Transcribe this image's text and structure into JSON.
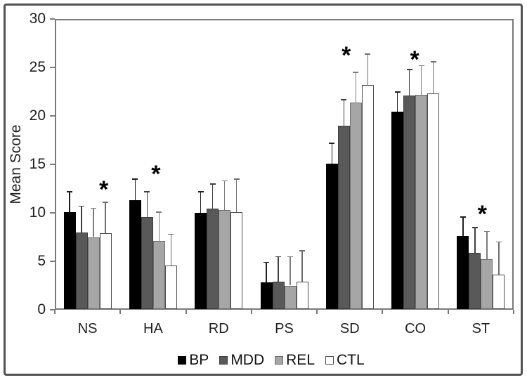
{
  "figure": {
    "background": "#ffffff",
    "border_color": "#525252",
    "axis_color": "#7a7a7a",
    "text_color": "#1f1f1f"
  },
  "chart_data": {
    "type": "bar",
    "title": "",
    "xlabel": "",
    "ylabel": "Mean Score",
    "ylim": [
      0,
      30
    ],
    "yticks": [
      0,
      5,
      10,
      15,
      20,
      25,
      30
    ],
    "grid": false,
    "error_bars": true,
    "legend_position": "bottom",
    "categories": [
      "NS",
      "HA",
      "RD",
      "PS",
      "SD",
      "CO",
      "ST"
    ],
    "series": [
      {
        "name": "BP",
        "color": "#000000",
        "border": "#000000",
        "error_color": "#1f1f1f",
        "values": [
          10.1,
          11.3,
          10.0,
          2.8,
          15.1,
          20.4,
          7.6
        ],
        "errors": [
          2.1,
          2.2,
          2.2,
          2.1,
          2.1,
          2.1,
          2.0
        ]
      },
      {
        "name": "MDD",
        "color": "#595959",
        "border": "#3d3d3d",
        "error_color": "#404040",
        "values": [
          8.0,
          9.6,
          10.4,
          2.9,
          19.0,
          22.1,
          5.9
        ],
        "errors": [
          2.7,
          2.6,
          2.6,
          2.6,
          2.7,
          2.7,
          2.6
        ]
      },
      {
        "name": "REL",
        "color": "#a6a6a6",
        "border": "#6e6e6e",
        "error_color": "#7d7d7d",
        "values": [
          7.5,
          7.1,
          10.3,
          2.5,
          21.4,
          22.2,
          5.2
        ],
        "errors": [
          3.0,
          3.0,
          3.0,
          3.0,
          3.1,
          3.0,
          2.9
        ]
      },
      {
        "name": "CTL",
        "color": "#ffffff",
        "border": "#4d4d4d",
        "error_color": "#6e6e6e",
        "values": [
          7.9,
          4.6,
          10.1,
          2.9,
          23.2,
          22.3,
          3.6
        ],
        "errors": [
          3.2,
          3.2,
          3.4,
          3.2,
          3.2,
          3.3,
          3.4
        ]
      }
    ],
    "significance": [
      {
        "category": "NS",
        "marker": "*",
        "y": 13.0,
        "dx": 23
      },
      {
        "category": "HA",
        "marker": "*",
        "y": 14.6,
        "dx": 4
      },
      {
        "category": "SD",
        "marker": "*",
        "y": 26.8,
        "dx": -5
      },
      {
        "category": "CO",
        "marker": "*",
        "y": 26.4,
        "dx": -1
      },
      {
        "category": "ST",
        "marker": "*",
        "y": 10.4,
        "dx": 2
      }
    ]
  }
}
